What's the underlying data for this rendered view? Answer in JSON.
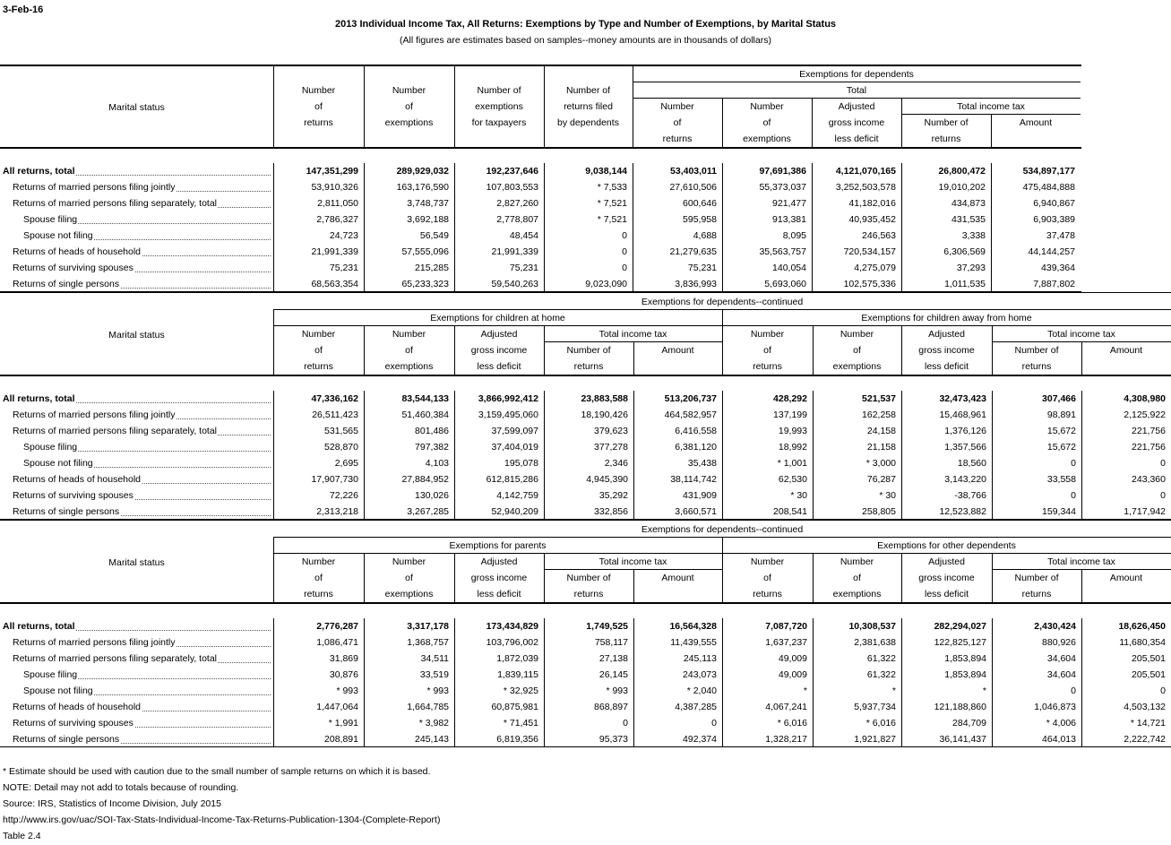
{
  "date": "3-Feb-16",
  "title": "2013 Individual Income Tax, All Returns: Exemptions by Type and Number of Exemptions, by Marital Status",
  "subtitle": "(All figures are estimates based on samples--money amounts are in thousands of dollars)",
  "row_labels": [
    "All returns, total",
    "Returns of married persons filing jointly",
    "Returns of married persons filing separately, total",
    "Spouse filing",
    "Spouse not filing",
    "Returns of heads of household",
    "Returns of surviving spouses",
    "Returns of single persons"
  ],
  "marital_status": "Marital status",
  "section1": {
    "banner": "Exemptions for dependents",
    "total": "Total",
    "tit": "Total income tax",
    "headers": [
      [
        "Number",
        "of",
        "returns"
      ],
      [
        "Number",
        "of",
        "exemptions"
      ],
      [
        "Number of",
        "exemptions",
        "for taxpayers"
      ],
      [
        "Number of",
        "returns filed",
        "by dependents"
      ],
      [
        "Number",
        "of",
        "returns"
      ],
      [
        "Number",
        "of",
        "exemptions"
      ],
      [
        "Adjusted",
        "gross income",
        "less deficit"
      ],
      [
        "Number of",
        "returns"
      ],
      [
        "Amount"
      ]
    ],
    "rows": [
      [
        "147,351,299",
        "289,929,032",
        "192,237,646",
        "9,038,144",
        "53,403,011",
        "97,691,386",
        "4,121,070,165",
        "26,800,472",
        "534,897,177"
      ],
      [
        "53,910,326",
        "163,176,590",
        "107,803,553",
        "* 7,533",
        "27,610,506",
        "55,373,037",
        "3,252,503,578",
        "19,010,202",
        "475,484,888"
      ],
      [
        "2,811,050",
        "3,748,737",
        "2,827,260",
        "* 7,521",
        "600,646",
        "921,477",
        "41,182,016",
        "434,873",
        "6,940,867"
      ],
      [
        "2,786,327",
        "3,692,188",
        "2,778,807",
        "* 7,521",
        "595,958",
        "913,381",
        "40,935,452",
        "431,535",
        "6,903,389"
      ],
      [
        "24,723",
        "56,549",
        "48,454",
        "0",
        "4,688",
        "8,095",
        "246,563",
        "3,338",
        "37,478"
      ],
      [
        "21,991,339",
        "57,555,096",
        "21,991,339",
        "0",
        "21,279,635",
        "35,563,757",
        "720,534,157",
        "6,306,569",
        "44,144,257"
      ],
      [
        "75,231",
        "215,285",
        "75,231",
        "0",
        "75,231",
        "140,054",
        "4,275,079",
        "37,293",
        "439,364"
      ],
      [
        "68,563,354",
        "65,233,323",
        "59,540,263",
        "9,023,090",
        "3,836,993",
        "5,693,060",
        "102,575,336",
        "1,011,535",
        "7,887,802"
      ]
    ]
  },
  "section2": {
    "banner": "Exemptions for dependents--continued",
    "group_a": "Exemptions for children at home",
    "group_b": "Exemptions for children away from home",
    "tit": "Total income tax",
    "headers": [
      [
        "Number",
        "of",
        "returns"
      ],
      [
        "Number",
        "of",
        "exemptions"
      ],
      [
        "Adjusted",
        "gross income",
        "less deficit"
      ],
      [
        "Number of",
        "returns"
      ],
      [
        "Amount"
      ],
      [
        "Number",
        "of",
        "returns"
      ],
      [
        "Number",
        "of",
        "exemptions"
      ],
      [
        "Adjusted",
        "gross income",
        "less deficit"
      ],
      [
        "Number of",
        "returns"
      ],
      [
        "Amount"
      ]
    ],
    "rows": [
      [
        "47,336,162",
        "83,544,133",
        "3,866,992,412",
        "23,883,588",
        "513,206,737",
        "428,292",
        "521,537",
        "32,473,423",
        "307,466",
        "4,308,980"
      ],
      [
        "26,511,423",
        "51,460,384",
        "3,159,495,060",
        "18,190,426",
        "464,582,957",
        "137,199",
        "162,258",
        "15,468,961",
        "98,891",
        "2,125,922"
      ],
      [
        "531,565",
        "801,486",
        "37,599,097",
        "379,623",
        "6,416,558",
        "19,993",
        "24,158",
        "1,376,126",
        "15,672",
        "221,756"
      ],
      [
        "528,870",
        "797,382",
        "37,404,019",
        "377,278",
        "6,381,120",
        "18,992",
        "21,158",
        "1,357,566",
        "15,672",
        "221,756"
      ],
      [
        "2,695",
        "4,103",
        "195,078",
        "2,346",
        "35,438",
        "* 1,001",
        "* 3,000",
        "18,560",
        "0",
        "0"
      ],
      [
        "17,907,730",
        "27,884,952",
        "612,815,286",
        "4,945,390",
        "38,114,742",
        "62,530",
        "76,287",
        "3,143,220",
        "33,558",
        "243,360"
      ],
      [
        "72,226",
        "130,026",
        "4,142,759",
        "35,292",
        "431,909",
        "* 30",
        "* 30",
        "-38,766",
        "0",
        "0"
      ],
      [
        "2,313,218",
        "3,267,285",
        "52,940,209",
        "332,856",
        "3,660,571",
        "208,541",
        "258,805",
        "12,523,882",
        "159,344",
        "1,717,942"
      ]
    ]
  },
  "section3": {
    "banner": "Exemptions for dependents--continued",
    "group_a": "Exemptions for parents",
    "group_b": "Exemptions for other dependents",
    "tit": "Total income tax",
    "headers": [
      [
        "Number",
        "of",
        "returns"
      ],
      [
        "Number",
        "of",
        "exemptions"
      ],
      [
        "Adjusted",
        "gross income",
        "less deficit"
      ],
      [
        "Number of",
        "returns"
      ],
      [
        "Amount"
      ],
      [
        "Number",
        "of",
        "returns"
      ],
      [
        "Number",
        "of",
        "exemptions"
      ],
      [
        "Adjusted",
        "gross income",
        "less deficit"
      ],
      [
        "Number of",
        "returns"
      ],
      [
        "Amount"
      ]
    ],
    "rows": [
      [
        "2,776,287",
        "3,317,178",
        "173,434,829",
        "1,749,525",
        "16,564,328",
        "7,087,720",
        "10,308,537",
        "282,294,027",
        "2,430,424",
        "18,626,450"
      ],
      [
        "1,086,471",
        "1,368,757",
        "103,796,002",
        "758,117",
        "11,439,555",
        "1,637,237",
        "2,381,638",
        "122,825,127",
        "880,926",
        "11,680,354"
      ],
      [
        "31,869",
        "34,511",
        "1,872,039",
        "27,138",
        "245,113",
        "49,009",
        "61,322",
        "1,853,894",
        "34,604",
        "205,501"
      ],
      [
        "30,876",
        "33,519",
        "1,839,115",
        "26,145",
        "243,073",
        "49,009",
        "61,322",
        "1,853,894",
        "34,604",
        "205,501"
      ],
      [
        "* 993",
        "* 993",
        "* 32,925",
        "* 993",
        "* 2,040",
        "*",
        "*",
        "*",
        "0",
        "0"
      ],
      [
        "1,447,064",
        "1,664,785",
        "60,875,981",
        "868,897",
        "4,387,285",
        "4,067,241",
        "5,937,734",
        "121,188,860",
        "1,046,873",
        "4,503,132"
      ],
      [
        "* 1,991",
        "* 3,982",
        "* 71,451",
        "0",
        "0",
        "* 6,016",
        "* 6,016",
        "284,709",
        "* 4,006",
        "* 14,721"
      ],
      [
        "208,891",
        "245,143",
        "6,819,356",
        "95,373",
        "492,374",
        "1,328,217",
        "1,921,827",
        "36,141,437",
        "464,013",
        "2,222,742"
      ]
    ]
  },
  "footnotes": [
    "* Estimate should be used with caution due to the small number of sample returns on which it is based.",
    "NOTE: Detail may not add to totals because of rounding.",
    "Source: IRS, Statistics of Income Division, July 2015",
    "http://www.irs.gov/uac/SOI-Tax-Stats-Individual-Income-Tax-Returns-Publication-1304-(Complete-Report)",
    "Table 2.4"
  ]
}
